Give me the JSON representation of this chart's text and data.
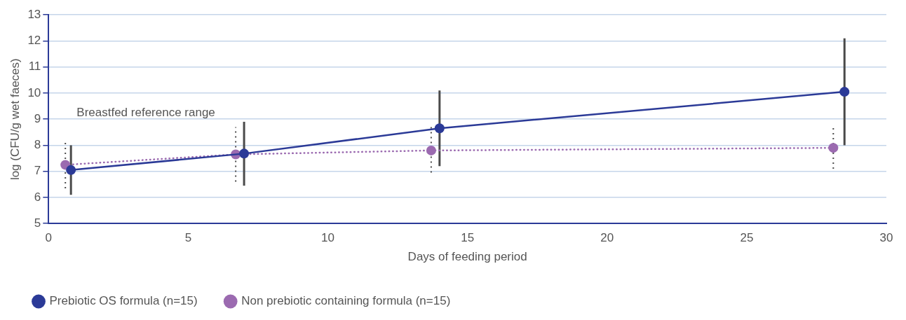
{
  "chart_data": {
    "type": "line",
    "xlabel": "Days of feeding period",
    "ylabel": "log (CFU/g wet faeces)",
    "xlim": [
      0,
      30
    ],
    "xticks": [
      0,
      5,
      10,
      15,
      20,
      25,
      30
    ],
    "ylim": [
      5,
      13
    ],
    "yticks": [
      5,
      6,
      7,
      8,
      9,
      10,
      11,
      12,
      13
    ],
    "grid": "y",
    "legend": "bottom left",
    "marker": "circle",
    "annotations": [
      "Breastfed reference range"
    ],
    "series": [
      {
        "name": "Prebiotic OS formula (n=15)",
        "color": "#2b3a97",
        "line_style": "solid",
        "x": [
          0.8,
          7,
          14,
          28.5
        ],
        "values": [
          7.05,
          7.68,
          8.65,
          10.05
        ],
        "errors": [
          [
            6.1,
            8.0
          ],
          [
            6.45,
            8.9
          ],
          [
            7.2,
            10.1
          ],
          [
            8.0,
            12.1
          ]
        ]
      },
      {
        "name": "Non prebiotic containing formula (n=15)",
        "color": "#9b6ab0",
        "line_style": "dotted",
        "x": [
          0.6,
          6.7,
          13.7,
          28.1
        ],
        "values": [
          7.25,
          7.65,
          7.8,
          7.9
        ],
        "errors": [
          [
            6.35,
            8.15
          ],
          [
            6.6,
            8.7
          ],
          [
            6.95,
            8.75
          ],
          [
            7.1,
            8.7
          ]
        ]
      }
    ]
  }
}
